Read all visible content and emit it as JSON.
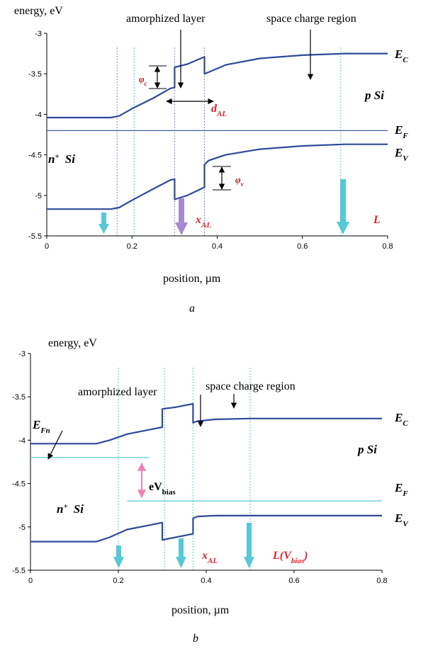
{
  "chart_data": [
    {
      "type": "line",
      "panel_label": "a",
      "ylabel": "energy, eV",
      "xlabel": "position, µm",
      "xlim": [
        0,
        0.8
      ],
      "ylim": [
        -5.5,
        -3
      ],
      "xticks": [
        "0",
        "0.2",
        "0.4",
        "0.6",
        "0.8"
      ],
      "yticks": [
        "-3",
        "-3.5",
        "-4",
        "-4.5",
        "-5",
        "-5.5"
      ],
      "grid": false,
      "series": [
        {
          "name": "E_C",
          "color": "#2e4a9a",
          "points": [
            [
              0,
              -4.04
            ],
            [
              0.15,
              -4.04
            ],
            [
              0.17,
              -4.02
            ],
            [
              0.2,
              -3.93
            ],
            [
              0.25,
              -3.8
            ],
            [
              0.29,
              -3.68
            ],
            [
              0.3,
              -3.67
            ],
            [
              0.3,
              -3.42
            ],
            [
              0.33,
              -3.38
            ],
            [
              0.37,
              -3.29
            ],
            [
              0.37,
              -3.5
            ],
            [
              0.38,
              -3.48
            ],
            [
              0.42,
              -3.39
            ],
            [
              0.5,
              -3.31
            ],
            [
              0.6,
              -3.27
            ],
            [
              0.7,
              -3.25
            ],
            [
              0.8,
              -3.25
            ]
          ]
        },
        {
          "name": "E_F",
          "color": "#2e4a9a",
          "points": [
            [
              0,
              -4.2
            ],
            [
              0.8,
              -4.2
            ]
          ]
        },
        {
          "name": "E_V",
          "color": "#2e4a9a",
          "points": [
            [
              0,
              -5.17
            ],
            [
              0.15,
              -5.17
            ],
            [
              0.17,
              -5.15
            ],
            [
              0.2,
              -5.06
            ],
            [
              0.25,
              -4.92
            ],
            [
              0.29,
              -4.81
            ],
            [
              0.3,
              -4.8
            ],
            [
              0.3,
              -5.05
            ],
            [
              0.33,
              -5.0
            ],
            [
              0.37,
              -4.9
            ],
            [
              0.37,
              -4.62
            ],
            [
              0.38,
              -4.57
            ],
            [
              0.42,
              -4.5
            ],
            [
              0.5,
              -4.43
            ],
            [
              0.6,
              -4.39
            ],
            [
              0.7,
              -4.37
            ],
            [
              0.8,
              -4.37
            ]
          ]
        }
      ],
      "guides": [
        {
          "x": 0.165,
          "color": "#7a8fd0"
        },
        {
          "x": 0.205,
          "color": "#56c8d8"
        },
        {
          "x": 0.3,
          "color": "#7a8fd0"
        },
        {
          "x": 0.37,
          "color": "#7a8fd0"
        },
        {
          "x": 0.69,
          "color": "#56c8d8"
        }
      ],
      "level_labels": [
        "E",
        "C",
        "E",
        "F",
        "E",
        "V"
      ],
      "annotations": {
        "amorphized": "amorphized layer",
        "scr": "space charge region",
        "p_si": "p Si",
        "n_si": "n",
        "n_sup": "+",
        "n_si2": "Si",
        "phi_c": "φ",
        "phi_c_sub": "c",
        "phi_v": "φ",
        "phi_v_sub": "v",
        "d_al": "d",
        "d_al_sub": "AL",
        "x_al": "x",
        "x_al_sub": "AL",
        "L": "L"
      }
    },
    {
      "type": "line",
      "panel_label": "b",
      "ylabel": "energy, eV",
      "xlabel": "position, µm",
      "xlim": [
        0,
        0.8
      ],
      "ylim": [
        -5.5,
        -3
      ],
      "xticks": [
        "0",
        "0.2",
        "0.4",
        "0.6",
        "0.8"
      ],
      "yticks": [
        "-3",
        "-3.5",
        "-4",
        "-4.5",
        "-5",
        "-5.5"
      ],
      "grid": false,
      "series": [
        {
          "name": "E_C",
          "color": "#2e4a9a",
          "points": [
            [
              0,
              -4.04
            ],
            [
              0.15,
              -4.04
            ],
            [
              0.18,
              -4.0
            ],
            [
              0.22,
              -3.93
            ],
            [
              0.27,
              -3.88
            ],
            [
              0.3,
              -3.85
            ],
            [
              0.3,
              -3.64
            ],
            [
              0.33,
              -3.62
            ],
            [
              0.37,
              -3.58
            ],
            [
              0.37,
              -3.8
            ],
            [
              0.38,
              -3.78
            ],
            [
              0.42,
              -3.76
            ],
            [
              0.5,
              -3.75
            ],
            [
              0.8,
              -3.75
            ]
          ]
        },
        {
          "name": "E_Fn",
          "color": "#56c8d8",
          "points": [
            [
              0,
              -4.2
            ],
            [
              0.27,
              -4.2
            ]
          ]
        },
        {
          "name": "E_Fp",
          "color": "#56c8d8",
          "points": [
            [
              0.22,
              -4.7
            ],
            [
              0.8,
              -4.7
            ]
          ]
        },
        {
          "name": "E_V",
          "color": "#2e4a9a",
          "points": [
            [
              0,
              -5.17
            ],
            [
              0.15,
              -5.17
            ],
            [
              0.18,
              -5.12
            ],
            [
              0.22,
              -5.03
            ],
            [
              0.27,
              -4.98
            ],
            [
              0.3,
              -4.95
            ],
            [
              0.3,
              -5.15
            ],
            [
              0.33,
              -5.12
            ],
            [
              0.37,
              -5.08
            ],
            [
              0.37,
              -4.9
            ],
            [
              0.38,
              -4.88
            ],
            [
              0.42,
              -4.87
            ],
            [
              0.5,
              -4.87
            ],
            [
              0.8,
              -4.87
            ]
          ]
        }
      ],
      "guides": [
        {
          "x": 0.2,
          "color": "#56c8d8"
        },
        {
          "x": 0.305,
          "color": "#56c8d8"
        },
        {
          "x": 0.37,
          "color": "#56c8d8"
        },
        {
          "x": 0.5,
          "color": "#56c8d8"
        }
      ],
      "level_labels": [
        "E",
        "C",
        "E",
        "F",
        "E",
        "V"
      ],
      "annotations": {
        "amorphized": "amorphized layer",
        "scr": "space charge region",
        "p_si": "p Si",
        "n_si": "n",
        "n_sup": "+",
        "n_si2": "Si",
        "efn": "E",
        "efn_sub": "Fn",
        "evbias": "eV",
        "evbias_sub": "bias",
        "x_al": "x",
        "x_al_sub": "AL",
        "L": "L(V",
        "L_sub": "bias",
        "L_close": ")"
      }
    }
  ]
}
